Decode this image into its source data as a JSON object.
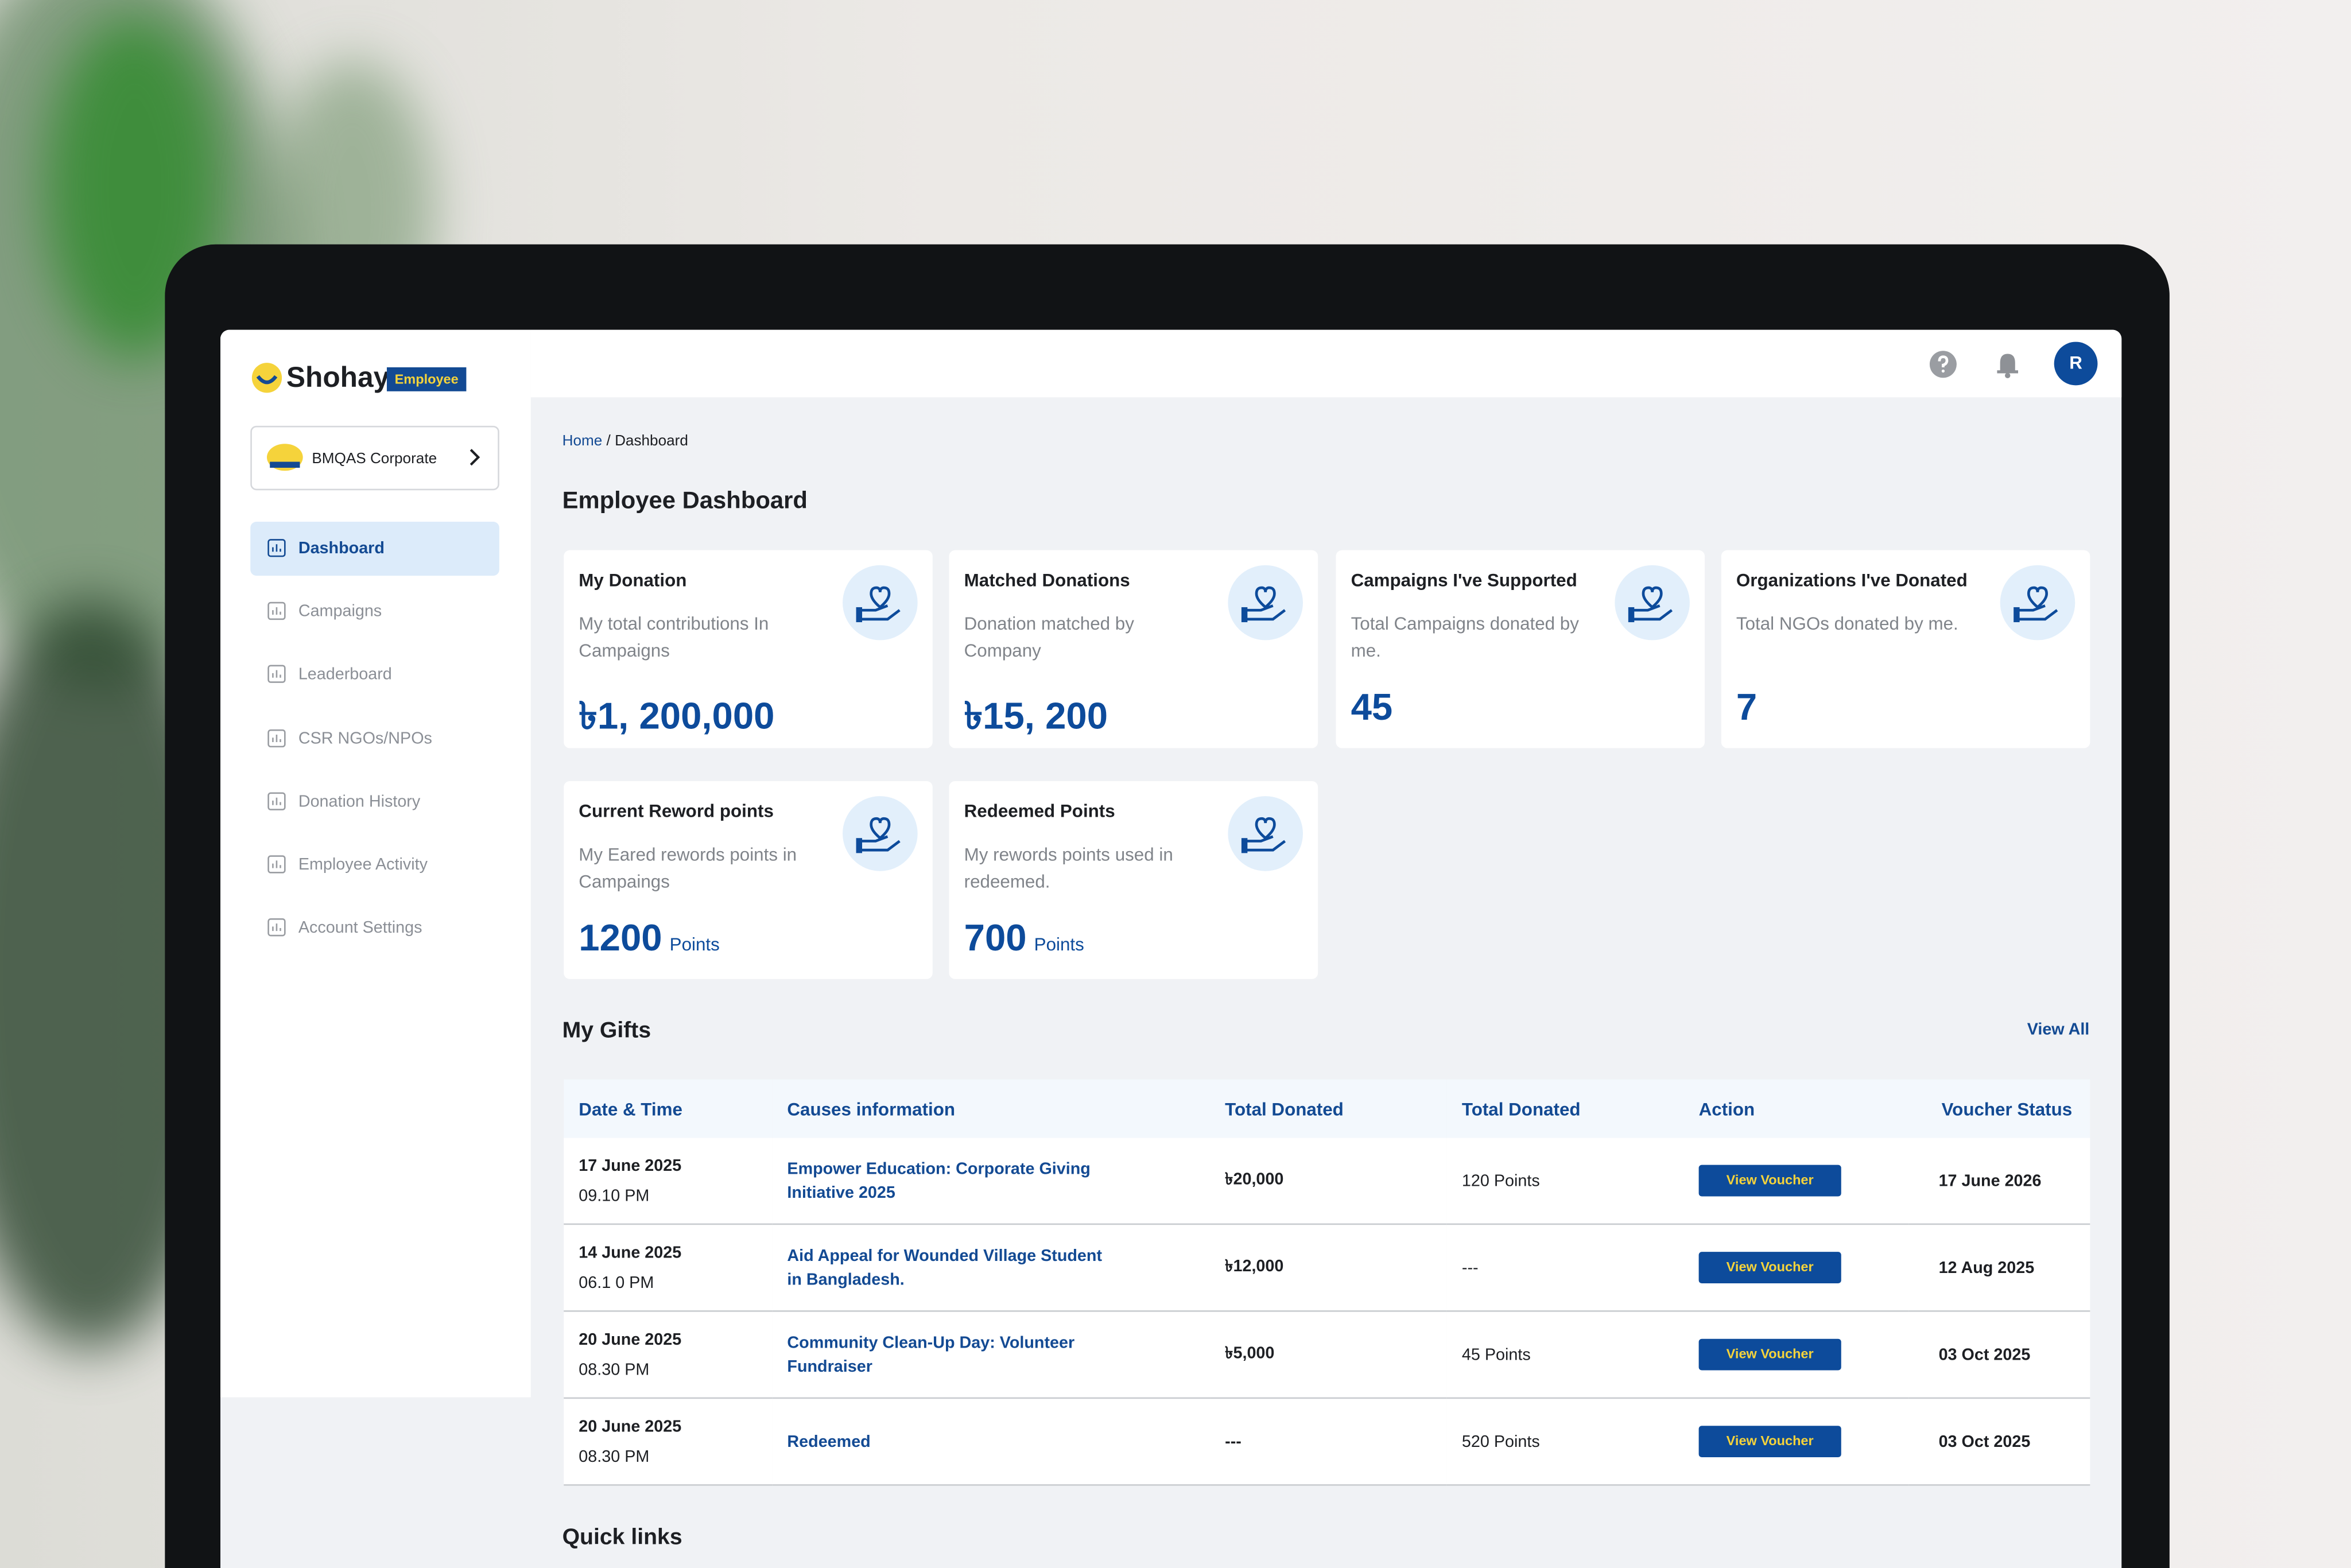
{
  "sidebar": {
    "logo": {
      "name": "Shohay",
      "badge": "Employee"
    },
    "organization": "BMQAS Corporate",
    "nav": [
      "Dashboard",
      "Campaigns",
      "Leaderboard",
      "CSR NGOs/NPOs",
      "Donation History",
      "Employee Activity",
      "Account Settings"
    ]
  },
  "topbar": {
    "avatar": "R"
  },
  "breadcrumb": [
    "Home",
    "/ Dashboard"
  ],
  "header": {
    "title": "Employee Dashboard"
  },
  "cards": [
    {
      "title": "My Donation",
      "description": "My total contributions In Campaigns",
      "value": "৳1, 200,000"
    },
    {
      "title": "Matched Donations",
      "description": "Donation matched by Company",
      "value": "৳15, 200"
    },
    {
      "title": "Campaigns I've Supported",
      "description": "Total Campaigns donated by me.",
      "value": "45"
    },
    {
      "title": "Organizations I've Donated",
      "description": "Total NGOs donated by me.",
      "value": "7"
    },
    {
      "title": "Current Reword points",
      "description": "My Eared rewords points in Campaings",
      "value": "1200",
      "unit": "Points"
    },
    {
      "title": "Redeemed Points",
      "description": "My rewords points used in redeemed.",
      "value": "700",
      "unit": "Points"
    }
  ],
  "gifts": {
    "title": "My Gifts",
    "view_all": "View All",
    "table": {
      "headers": [
        "Date & Time",
        "Causes information",
        "Total Donated",
        "Total Donated",
        "Action",
        "Voucher Status"
      ],
      "rows": [
        [
          "17 June 2025",
          "09.10 PM",
          "Empower Education: Corporate Giving Initiative 2025",
          "৳20,000",
          "120 Points",
          "View Voucher",
          "17 June 2026"
        ],
        [
          "14 June 2025",
          "06.1 0 PM",
          "Aid Appeal for Wounded Village Student in Bangladesh.",
          "৳12,000",
          "---",
          "View Voucher",
          "12 Aug 2025"
        ],
        [
          "20 June 2025",
          "08.30 PM",
          "Community Clean-Up Day: Volunteer Fundraiser",
          "৳5,000",
          "45 Points",
          "View Voucher",
          "03 Oct 2025"
        ],
        [
          "20 June 2025",
          "08.30 PM",
          "Redeemed",
          "---",
          "520 Points",
          "View Voucher",
          "03 Oct 2025"
        ]
      ]
    }
  },
  "quick_links": {
    "title": "Quick links"
  }
}
